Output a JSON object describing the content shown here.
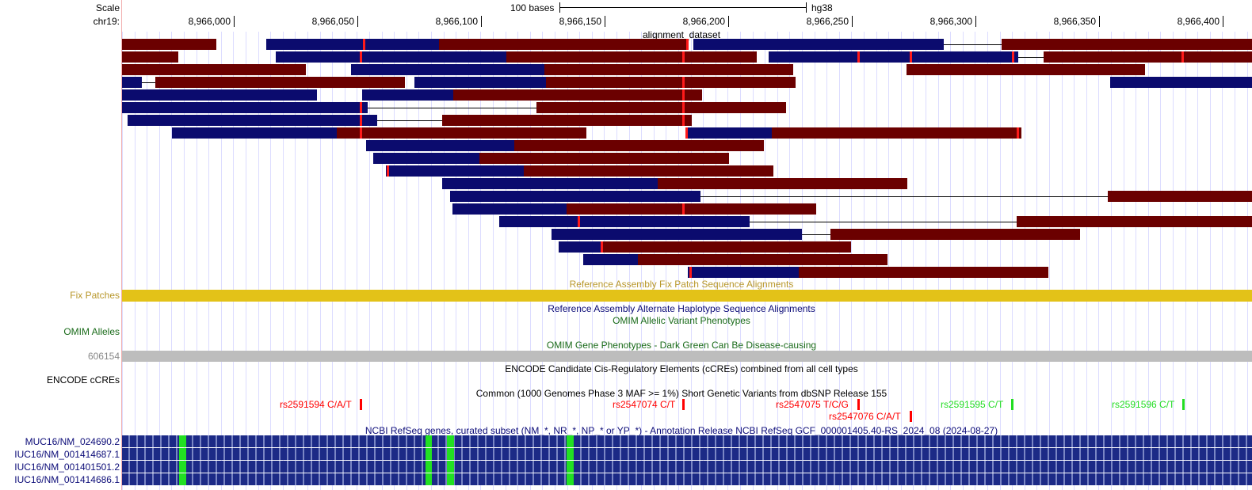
{
  "ruler": {
    "scale_label": "Scale",
    "chrom_label": "chr19:",
    "scale_bar_text": "100 bases",
    "assembly": "hg38",
    "positions": [
      "8,966,000",
      "8,966,050",
      "8,966,100",
      "8,966,150",
      "8,966,200",
      "8,966,250",
      "8,966,300",
      "8,966,350",
      "8,966,400"
    ]
  },
  "tracks": {
    "alignment": {
      "title": "alignment_dataset"
    },
    "fix_patches": {
      "left_label": "Fix Patches",
      "title": "Reference Assembly Fix Patch Sequence Alignments"
    },
    "alt_haplotypes": {
      "title": "Reference Assembly Alternate Haplotype Sequence Alignments"
    },
    "omim_alleles": {
      "left_label": "OMIM Alleles",
      "title": "OMIM Allelic Variant Phenotypes"
    },
    "omim_genes": {
      "left_label": "606154",
      "title": "OMIM Gene Phenotypes - Dark Green Can Be Disease-causing"
    },
    "encode": {
      "left_label": "ENCODE cCREs",
      "title": "ENCODE Candidate Cis-Regulatory Elements (cCREs) combined from all cell types"
    },
    "snp": {
      "title": "Common (1000 Genomes Phase 3 MAF >= 1%) Short Genetic Variants from dbSNP Release 155",
      "variants": [
        {
          "label": "rs2591594 C/A/T",
          "color": "#ff0000"
        },
        {
          "label": "rs2547074 C/T",
          "color": "#ff0000"
        },
        {
          "label": "rs2547075 T/C/G",
          "color": "#ff0000"
        },
        {
          "label": "rs2547076 C/A/T",
          "color": "#ff0000"
        },
        {
          "label": "rs2591595 C/T",
          "color": "#22dd22"
        },
        {
          "label": "rs2591596 C/T",
          "color": "#22dd22"
        }
      ]
    },
    "refseq": {
      "title": "NCBI RefSeq genes, curated subset (NM_*, NR_*, NP_* or YP_*) - Annotation Release NCBI RefSeq GCF_000001405.40-RS_2024_08 (2024-08-27)",
      "transcripts": [
        "MUC16/NM_024690.2",
        "IUC16/NM_001414687.1",
        "IUC16/NM_001401501.2",
        "IUC16/NM_001414686.1"
      ]
    }
  },
  "colors": {
    "forward_block": "#0b0b6e",
    "reverse_block": "#6b0000",
    "mismatch": "#ff1a1a",
    "fix_patch": "#e3c218",
    "omim_gene": "#bdbdbd",
    "fix_label": "#b8972a",
    "omim_label": "#1a6b1a",
    "refseq_label": "#0c0c78"
  }
}
